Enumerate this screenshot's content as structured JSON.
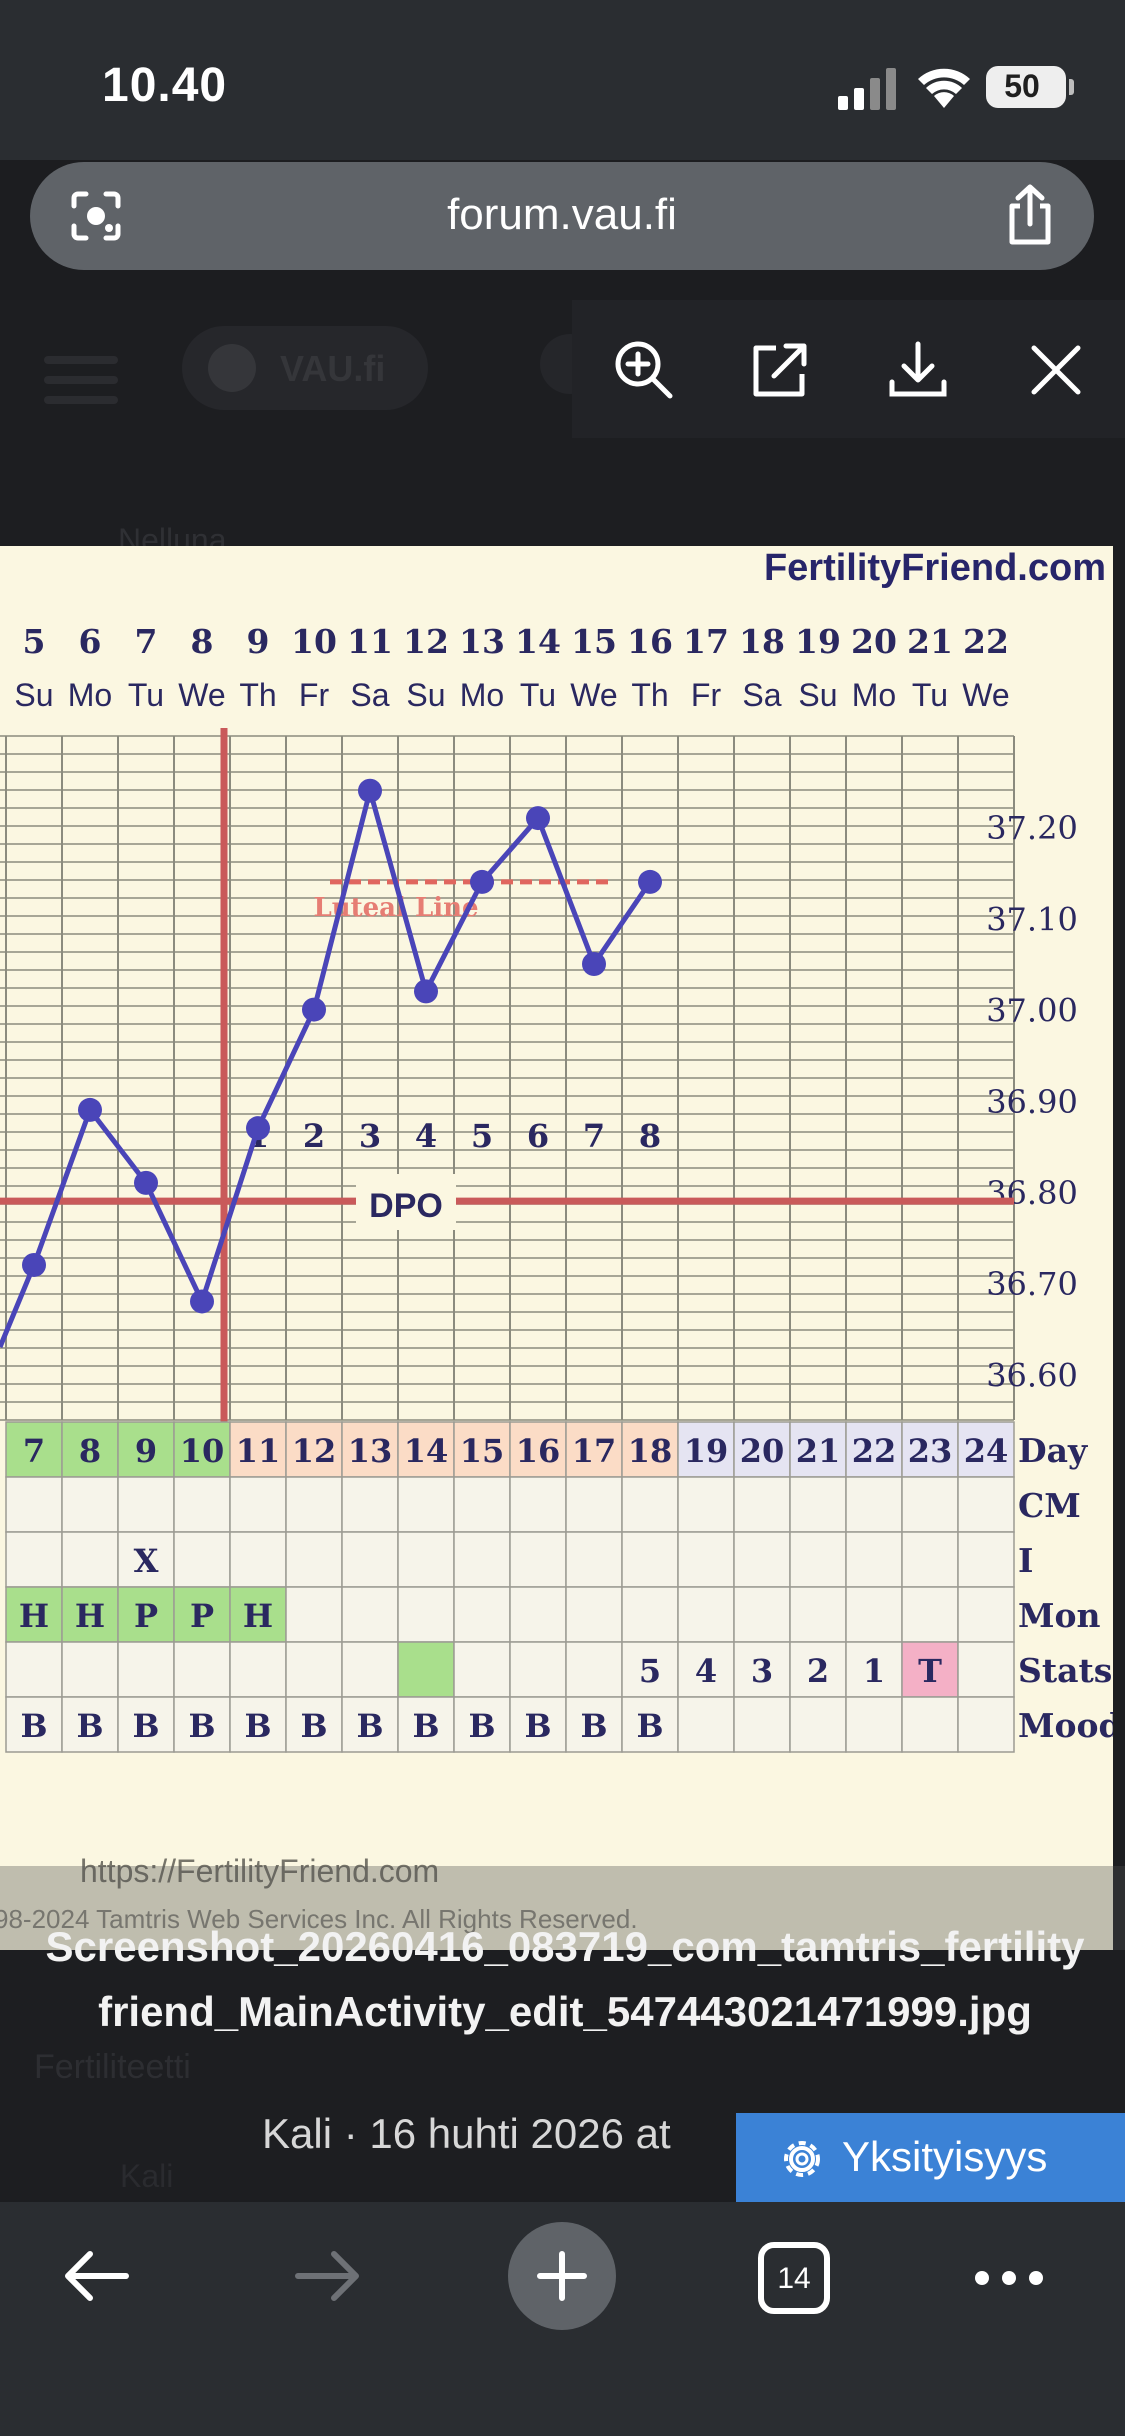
{
  "status_bar": {
    "time": "10.40",
    "battery": "50"
  },
  "url_bar": {
    "url": "forum.vau.fi"
  },
  "background_page": {
    "logo": "VAU.fi",
    "faded_text": "Nelluna",
    "faded_line1": "Fertiliteetti",
    "faded_line2": "Kali"
  },
  "viewer_toolbar": {
    "icons": [
      "zoom-in-icon",
      "open-external-icon",
      "download-icon",
      "close-icon"
    ]
  },
  "chart_data": {
    "type": "line",
    "brand": "FertilityFriend.com",
    "watermark": "https://FertilityFriend.com",
    "copyright": "98-2024 Tamtris Web Services Inc. All Rights Reserved.",
    "date_numbers": [
      "5",
      "6",
      "7",
      "8",
      "9",
      "10",
      "11",
      "12",
      "13",
      "14",
      "15",
      "16",
      "17",
      "18",
      "19",
      "20",
      "21",
      "22"
    ],
    "weekdays": [
      "Su",
      "Mo",
      "Tu",
      "We",
      "Th",
      "Fr",
      "Sa",
      "Su",
      "Mo",
      "Tu",
      "We",
      "Th",
      "Fr",
      "Sa",
      "Su",
      "Mo",
      "Tu",
      "We"
    ],
    "y_ticks": [
      "37.20",
      "37.10",
      "37.00",
      "36.90",
      "36.80",
      "36.70",
      "36.60"
    ],
    "ylim": [
      36.55,
      37.3
    ],
    "series": [
      {
        "x_index": [
          0,
          1,
          2,
          3,
          4,
          5,
          6,
          7,
          8,
          9,
          10,
          11
        ],
        "values": [
          36.72,
          36.89,
          36.81,
          36.68,
          36.87,
          37.0,
          37.24,
          37.02,
          37.14,
          37.21,
          37.05,
          37.14
        ]
      }
    ],
    "coverline": 36.79,
    "ovulation_day_index": 3,
    "luteal_line": {
      "label": "Luteal Line",
      "value": 37.14
    },
    "dpo_label": "DPO",
    "dpo_numbers": [
      "1",
      "2",
      "3",
      "4",
      "5",
      "6",
      "7",
      "8"
    ],
    "cycle_days": [
      "7",
      "8",
      "9",
      "10",
      "11",
      "12",
      "13",
      "14",
      "15",
      "16",
      "17",
      "18",
      "19",
      "20",
      "21",
      "22",
      "23",
      "24"
    ],
    "row_labels": [
      "Day",
      "CM",
      "I",
      "Mon",
      "Stats",
      "Mood"
    ],
    "intercourse": [
      "",
      "",
      "X",
      "",
      "",
      "",
      "",
      "",
      "",
      "",
      "",
      "",
      "",
      "",
      "",
      "",
      "",
      ""
    ],
    "monitor": [
      "H",
      "H",
      "P",
      "P",
      "H",
      "",
      "",
      "",
      "",
      "",
      "",
      "",
      "",
      "",
      "",
      "",
      "",
      ""
    ],
    "stats": [
      "",
      "",
      "",
      "",
      "",
      "",
      "",
      "",
      "",
      "",
      "",
      "5",
      "4",
      "3",
      "2",
      "1",
      "T",
      ""
    ],
    "mood": [
      "B",
      "B",
      "B",
      "B",
      "B",
      "B",
      "B",
      "B",
      "B",
      "B",
      "B",
      "B",
      "",
      "",
      "",
      "",
      "",
      ""
    ]
  },
  "caption": {
    "filename": "Screenshot_20260416_083719_com_tamtris_fertilityfriend_MainActivity_edit_547443021471999.jpg",
    "meta": "Kali · 16 huhti 2026 at"
  },
  "privacy_button": {
    "label": "Yksityisyys"
  },
  "bottom_nav": {
    "tab_count": "14"
  }
}
